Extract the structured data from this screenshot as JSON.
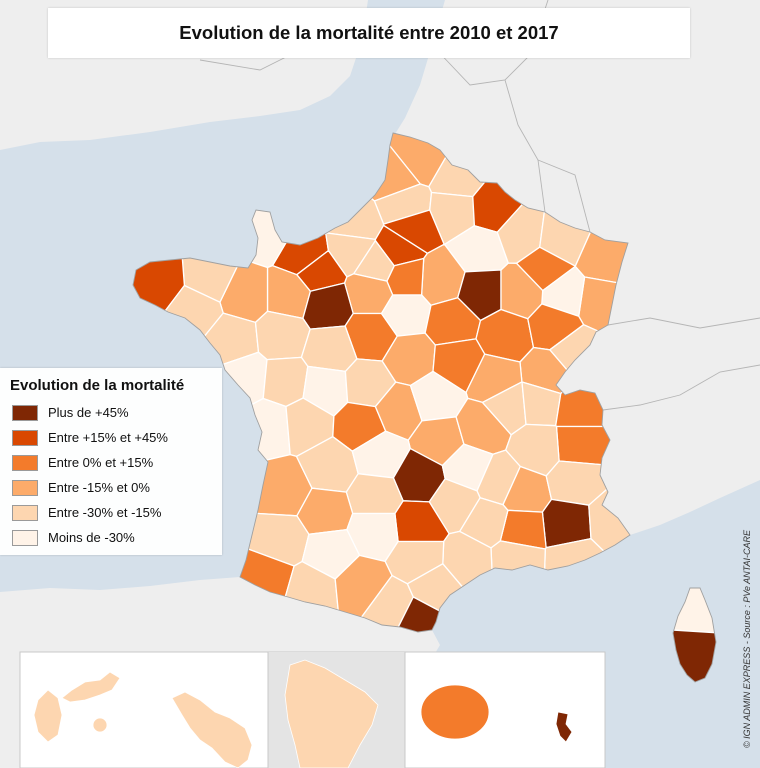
{
  "title": "Evolution de la mortalité entre 2010 et 2017",
  "legend": {
    "title": "Evolution de la mortalité",
    "items": [
      {
        "label": "Plus de +45%",
        "color": "#7f2704"
      },
      {
        "label": "Entre +15% et +45%",
        "color": "#d94801"
      },
      {
        "label": "Entre 0% et +15%",
        "color": "#f37b2b"
      },
      {
        "label": "Entre -15% et 0%",
        "color": "#fcab6a"
      },
      {
        "label": "Entre -30% et -15%",
        "color": "#fdd6b0"
      },
      {
        "label": "Moins de -30%",
        "color": "#fff3e8"
      }
    ]
  },
  "credit": "© IGN ADMIN EXPRESS - Source : PVe ANTAI-CARE",
  "colors": {
    "sea": "#d5e0ea",
    "land": "#eeeeee",
    "outline": "#a0a0a0",
    "department_border": "#ffffff",
    "inset_background": "#ffffff",
    "inset_land": "#e4e4e4"
  },
  "map": {
    "department_classes": [
      3,
      3,
      4,
      4,
      4,
      1,
      4,
      1,
      1,
      5,
      4,
      1,
      5,
      4,
      4,
      2,
      3,
      3,
      5,
      3,
      2,
      4,
      0,
      3,
      1,
      3,
      3,
      0,
      3,
      4,
      1,
      4,
      4,
      4,
      2,
      5,
      2,
      2,
      2,
      4,
      3,
      4,
      5,
      4,
      5,
      4,
      3,
      2,
      3,
      5,
      4,
      2,
      3,
      5,
      3,
      3,
      4,
      4,
      2,
      2,
      4,
      3,
      4,
      5,
      0,
      5,
      4,
      3,
      4,
      0,
      4,
      4,
      2,
      4,
      4,
      1,
      4,
      3,
      4,
      4,
      4,
      5,
      4,
      5,
      2,
      4,
      3,
      4,
      4,
      0,
      5,
      0
    ],
    "overseas_classes": [
      4,
      4,
      4,
      2,
      0
    ]
  }
}
